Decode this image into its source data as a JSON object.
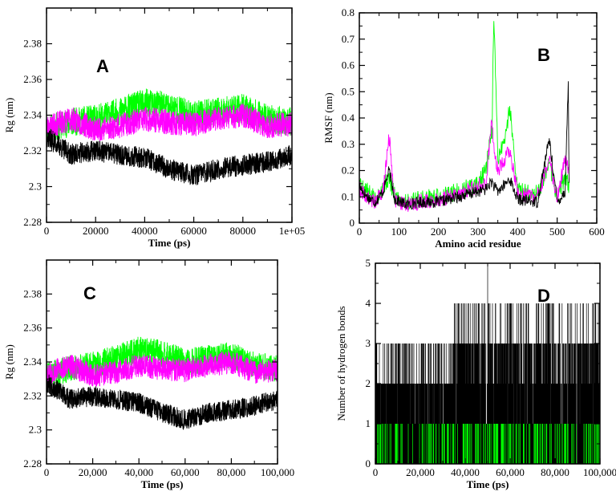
{
  "colors": {
    "black": "#000000",
    "green": "#00ff00",
    "magenta": "#ff00ff"
  },
  "chart_data": [
    {
      "id": "A",
      "type": "line",
      "panel_label": "A",
      "xlabel": "Time (ps)",
      "ylabel": "Rg (nm)",
      "xlim": [
        0,
        100000
      ],
      "ylim": [
        2.28,
        2.4
      ],
      "xticks": [
        0,
        20000,
        40000,
        60000,
        80000,
        100000
      ],
      "xtick_labels": [
        "0",
        "20000",
        "40000",
        "60000",
        "80000",
        "1e+05"
      ],
      "yticks": [
        2.28,
        2.3,
        2.32,
        2.34,
        2.36,
        2.38
      ],
      "ytick_labels": [
        "2.28",
        "2.3",
        "2.32",
        "2.34",
        "2.36",
        "2.38"
      ],
      "grid": false,
      "series": [
        {
          "color": "green",
          "noise": 0.008,
          "seed": 11,
          "x": [
            0,
            10000,
            20000,
            30000,
            40000,
            50000,
            60000,
            70000,
            80000,
            90000,
            100000
          ],
          "y": [
            2.332,
            2.336,
            2.338,
            2.342,
            2.347,
            2.345,
            2.34,
            2.342,
            2.344,
            2.338,
            2.336
          ]
        },
        {
          "color": "magenta",
          "noise": 0.007,
          "seed": 23,
          "x": [
            0,
            10000,
            20000,
            30000,
            40000,
            50000,
            60000,
            70000,
            80000,
            90000,
            100000
          ],
          "y": [
            2.333,
            2.338,
            2.332,
            2.334,
            2.338,
            2.336,
            2.335,
            2.338,
            2.34,
            2.334,
            2.335
          ]
        },
        {
          "color": "black",
          "noise": 0.006,
          "seed": 37,
          "x": [
            0,
            10000,
            20000,
            30000,
            40000,
            50000,
            60000,
            70000,
            80000,
            90000,
            100000
          ],
          "y": [
            2.328,
            2.318,
            2.32,
            2.318,
            2.316,
            2.31,
            2.306,
            2.31,
            2.312,
            2.314,
            2.318
          ]
        }
      ]
    },
    {
      "id": "B",
      "type": "line",
      "panel_label": "B",
      "xlabel": "Amino acid residue",
      "ylabel": "RMSF (nm)",
      "xlim": [
        0,
        600
      ],
      "ylim": [
        0,
        0.8
      ],
      "xticks": [
        0,
        100,
        200,
        300,
        400,
        500,
        600
      ],
      "xtick_labels": [
        "0",
        "100",
        "200",
        "300",
        "400",
        "500",
        "600"
      ],
      "yticks": [
        0,
        0.1,
        0.2,
        0.3,
        0.4,
        0.5,
        0.6,
        0.7,
        0.8
      ],
      "ytick_labels": [
        "0",
        "0.1",
        "0.2",
        "0.3",
        "0.4",
        "0.5",
        "0.6",
        "0.7",
        "0.8"
      ],
      "grid": false,
      "series": [
        {
          "color": "green",
          "noise": 0.035,
          "seed": 5,
          "x": [
            0,
            20,
            40,
            60,
            75,
            90,
            120,
            150,
            200,
            250,
            300,
            320,
            335,
            340,
            350,
            370,
            380,
            400,
            450,
            480,
            500,
            520,
            530
          ],
          "y": [
            0.15,
            0.12,
            0.09,
            0.14,
            0.17,
            0.1,
            0.08,
            0.09,
            0.1,
            0.12,
            0.15,
            0.2,
            0.35,
            0.78,
            0.25,
            0.33,
            0.45,
            0.12,
            0.11,
            0.22,
            0.1,
            0.18,
            0.14
          ]
        },
        {
          "color": "magenta",
          "noise": 0.03,
          "seed": 9,
          "x": [
            0,
            20,
            40,
            60,
            75,
            90,
            120,
            150,
            200,
            250,
            300,
            320,
            335,
            340,
            350,
            370,
            380,
            400,
            450,
            480,
            500,
            520,
            530
          ],
          "y": [
            0.13,
            0.1,
            0.08,
            0.12,
            0.33,
            0.09,
            0.07,
            0.08,
            0.09,
            0.11,
            0.14,
            0.15,
            0.4,
            0.28,
            0.2,
            0.25,
            0.28,
            0.11,
            0.1,
            0.24,
            0.1,
            0.24,
            0.2
          ]
        },
        {
          "color": "black",
          "noise": 0.022,
          "seed": 17,
          "x": [
            0,
            20,
            40,
            60,
            75,
            90,
            120,
            150,
            200,
            250,
            300,
            320,
            335,
            340,
            350,
            370,
            380,
            400,
            450,
            480,
            500,
            520,
            528,
            530
          ],
          "y": [
            0.14,
            0.1,
            0.08,
            0.12,
            0.2,
            0.09,
            0.07,
            0.08,
            0.08,
            0.1,
            0.12,
            0.13,
            0.16,
            0.14,
            0.12,
            0.15,
            0.17,
            0.09,
            0.08,
            0.32,
            0.08,
            0.12,
            0.54,
            0.14
          ]
        }
      ]
    },
    {
      "id": "C",
      "type": "line",
      "panel_label": "C",
      "xlabel": "Time (ps)",
      "ylabel": "Rg (nm)",
      "xlim": [
        0,
        100000
      ],
      "ylim": [
        2.28,
        2.4
      ],
      "xticks": [
        0,
        20000,
        40000,
        60000,
        80000,
        100000
      ],
      "xtick_labels": [
        "0",
        "20,000",
        "40,000",
        "60,000",
        "80,000",
        "100,000"
      ],
      "yticks": [
        2.28,
        2.3,
        2.32,
        2.34,
        2.36,
        2.38
      ],
      "ytick_labels": [
        "2.28",
        "2.3",
        "2.32",
        "2.34",
        "2.36",
        "2.38"
      ],
      "grid": false,
      "series": [
        {
          "color": "green",
          "noise": 0.008,
          "seed": 41,
          "x": [
            0,
            10000,
            20000,
            30000,
            40000,
            50000,
            60000,
            70000,
            80000,
            90000,
            100000
          ],
          "y": [
            2.332,
            2.336,
            2.338,
            2.342,
            2.347,
            2.345,
            2.34,
            2.342,
            2.344,
            2.338,
            2.336
          ]
        },
        {
          "color": "magenta",
          "noise": 0.007,
          "seed": 53,
          "x": [
            0,
            10000,
            20000,
            30000,
            40000,
            50000,
            60000,
            70000,
            80000,
            90000,
            100000
          ],
          "y": [
            2.333,
            2.338,
            2.332,
            2.334,
            2.338,
            2.336,
            2.335,
            2.338,
            2.34,
            2.334,
            2.335
          ]
        },
        {
          "color": "black",
          "noise": 0.006,
          "seed": 67,
          "x": [
            0,
            10000,
            20000,
            30000,
            40000,
            50000,
            60000,
            70000,
            80000,
            90000,
            100000
          ],
          "y": [
            2.328,
            2.318,
            2.32,
            2.318,
            2.316,
            2.31,
            2.306,
            2.31,
            2.312,
            2.314,
            2.318
          ]
        }
      ]
    },
    {
      "id": "D",
      "type": "line",
      "panel_label": "D",
      "xlabel": "Time (ps)",
      "ylabel": "Number of hydrogen bonds",
      "xlim": [
        0,
        100000
      ],
      "ylim": [
        0,
        5
      ],
      "xticks": [
        0,
        20000,
        40000,
        60000,
        80000,
        100000
      ],
      "xtick_labels": [
        "0",
        "20,000",
        "40,000",
        "60,000",
        "80,000",
        "100,000"
      ],
      "yticks": [
        0,
        1,
        2,
        3,
        4,
        5
      ],
      "ytick_labels": [
        "0",
        "1",
        "2",
        "3",
        "4",
        "5"
      ],
      "grid": false,
      "series": [
        {
          "color": "black",
          "step": true,
          "seed": 71,
          "segments": [
            {
              "from": 0,
              "to": 35000,
              "levels": [
                0,
                1,
                2,
                2,
                2,
                3,
                1,
                2
              ]
            },
            {
              "from": 35000,
              "to": 100000,
              "levels": [
                0,
                1,
                2,
                3,
                3,
                3,
                2,
                4,
                1
              ]
            }
          ],
          "peak": {
            "x": 50000,
            "y": 5
          }
        },
        {
          "color": "green",
          "step": true,
          "seed": 83,
          "segments": [
            {
              "from": 0,
              "to": 100000,
              "levels": [
                0,
                0,
                0,
                0,
                0,
                0,
                1
              ]
            }
          ]
        }
      ]
    }
  ]
}
